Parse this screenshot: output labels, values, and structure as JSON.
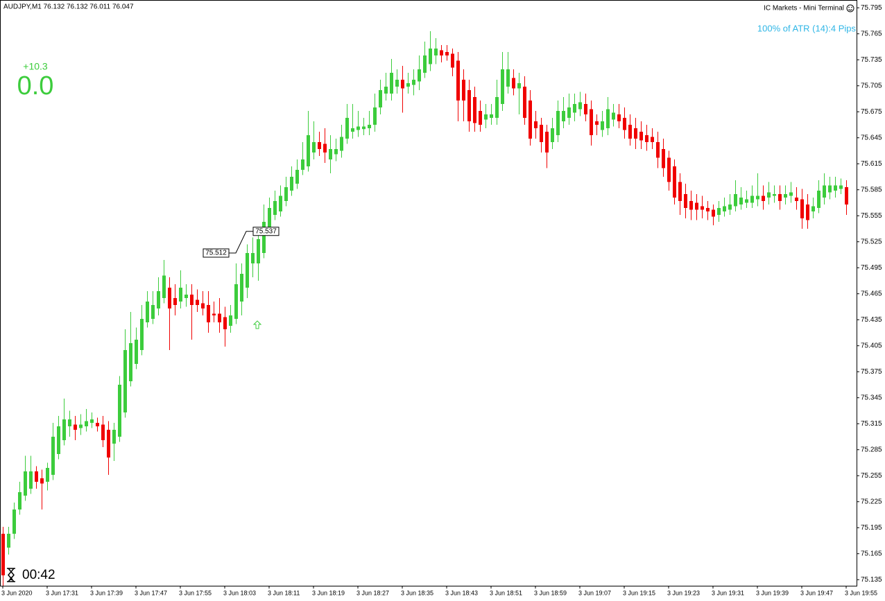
{
  "chart_data": {
    "type": "candlestick",
    "title": "AUDJPY,M1  76.132 76.132 76.011 76.047",
    "annotations": {
      "terminal": "IC Markets - Mini Terminal",
      "atr": "100% of ATR (14):4 Pips",
      "pips_change": "+10.3",
      "pips_big": "0.0",
      "timer": "00:42"
    },
    "trendline": {
      "start": 75.512,
      "end": 75.537
    },
    "up_color": "#3ccc3c",
    "down_color": "#f00000",
    "ylim": [
      75.128,
      75.804
    ],
    "yticks": [
      75.795,
      75.765,
      75.735,
      75.705,
      75.675,
      75.645,
      75.615,
      75.585,
      75.555,
      75.525,
      75.495,
      75.465,
      75.435,
      75.405,
      75.375,
      75.345,
      75.315,
      75.285,
      75.255,
      75.225,
      75.195,
      75.165,
      75.135
    ],
    "categories": [
      "3 Jun 2020",
      null,
      null,
      null,
      null,
      null,
      null,
      null,
      "3 Jun 17:31",
      null,
      null,
      null,
      null,
      null,
      null,
      null,
      "3 Jun 17:39",
      null,
      null,
      null,
      null,
      null,
      null,
      null,
      "3 Jun 17:47",
      null,
      null,
      null,
      null,
      null,
      null,
      null,
      "3 Jun 17:55",
      null,
      null,
      null,
      null,
      null,
      null,
      null,
      "3 Jun 18:03",
      null,
      null,
      null,
      null,
      null,
      null,
      null,
      "3 Jun 18:11",
      null,
      null,
      null,
      null,
      null,
      null,
      null,
      "3 Jun 18:19",
      null,
      null,
      null,
      null,
      null,
      null,
      null,
      "3 Jun 18:27",
      null,
      null,
      null,
      null,
      null,
      null,
      null,
      "3 Jun 18:35",
      null,
      null,
      null,
      null,
      null,
      null,
      null,
      "3 Jun 18:43",
      null,
      null,
      null,
      null,
      null,
      null,
      null,
      "3 Jun 18:51",
      null,
      null,
      null,
      null,
      null,
      null,
      null,
      "3 Jun 18:59",
      null,
      null,
      null,
      null,
      null,
      null,
      null,
      "3 Jun 19:07",
      null,
      null,
      null,
      null,
      null,
      null,
      null,
      "3 Jun 19:15",
      null,
      null,
      null,
      null,
      null,
      null,
      null,
      "3 Jun 19:23",
      null,
      null,
      null,
      null,
      null,
      null,
      null,
      "3 Jun 19:31",
      null,
      null,
      null,
      null,
      null,
      null,
      null,
      "3 Jun 19:39",
      null,
      null,
      null,
      null,
      null,
      null,
      null,
      "3 Jun 19:47",
      null,
      null,
      null,
      null,
      null,
      null,
      null,
      "3 Jun 19:55"
    ],
    "open": [
      75.188,
      75.172,
      75.188,
      75.216,
      75.232,
      75.24,
      75.26,
      75.252,
      75.248,
      75.256,
      75.28,
      75.296,
      75.312,
      75.314,
      75.31,
      75.312,
      75.316,
      75.316,
      75.314,
      75.308,
      75.292,
      75.3,
      75.328,
      75.364,
      75.384,
      75.4,
      75.432,
      75.436,
      75.448,
      75.46,
      75.472,
      75.46,
      75.456,
      75.46,
      75.464,
      75.458,
      75.454,
      75.452,
      75.442,
      75.442,
      75.438,
      75.428,
      75.436,
      75.456,
      75.472,
      75.5,
      75.5,
      75.512,
      75.54,
      75.556,
      75.56,
      75.572,
      75.584,
      75.592,
      75.608,
      75.612,
      75.628,
      75.64,
      75.638,
      75.62,
      75.626,
      75.63,
      75.644,
      75.652,
      75.654,
      75.655,
      75.656,
      75.66,
      75.68,
      75.696,
      75.696,
      75.704,
      75.712,
      75.704,
      75.706,
      75.71,
      75.72,
      75.73,
      75.74,
      75.746,
      75.744,
      75.742,
      75.734,
      75.712,
      75.7,
      75.692,
      75.676,
      75.666,
      75.668,
      75.668,
      75.684,
      75.704,
      75.714,
      75.702,
      75.704,
      75.688,
      75.664,
      75.66,
      75.652,
      75.64,
      75.648,
      75.664,
      75.668,
      75.674,
      75.678,
      75.684,
      75.678,
      75.664,
      75.654,
      75.656,
      75.666,
      75.672,
      75.668,
      75.66,
      75.656,
      75.652,
      75.648,
      75.646,
      75.64,
      75.632,
      75.622,
      75.612,
      75.594,
      75.58,
      75.572,
      75.57,
      75.566,
      75.564,
      75.562,
      75.556,
      75.56,
      75.562,
      75.566,
      75.568,
      75.57,
      75.57,
      75.574,
      75.578,
      75.576,
      75.578,
      75.58,
      75.576,
      75.578,
      75.576,
      75.574,
      75.568,
      75.56,
      75.564,
      75.576,
      75.582,
      75.584,
      75.586,
      75.588
    ],
    "high": [
      75.196,
      75.196,
      75.224,
      75.248,
      75.278,
      75.278,
      75.266,
      75.262,
      75.27,
      75.316,
      75.324,
      75.344,
      75.33,
      75.324,
      75.326,
      75.332,
      75.328,
      75.322,
      75.324,
      75.318,
      75.316,
      75.37,
      75.424,
      75.444,
      75.426,
      75.452,
      75.468,
      75.468,
      75.484,
      75.504,
      75.484,
      75.476,
      75.492,
      75.476,
      75.476,
      75.47,
      75.468,
      75.468,
      75.456,
      75.46,
      75.45,
      75.452,
      75.5,
      75.5,
      75.522,
      75.53,
      75.54,
      75.568,
      75.576,
      75.584,
      75.59,
      75.6,
      75.612,
      75.62,
      75.64,
      75.676,
      75.664,
      75.652,
      75.656,
      75.648,
      75.644,
      75.66,
      75.684,
      75.684,
      75.676,
      75.668,
      75.676,
      75.696,
      75.712,
      75.72,
      75.736,
      75.724,
      75.728,
      75.72,
      75.724,
      75.74,
      75.756,
      75.768,
      75.76,
      75.752,
      75.752,
      75.748,
      75.744,
      75.724,
      75.712,
      75.704,
      75.688,
      75.684,
      75.684,
      75.712,
      75.744,
      75.744,
      75.724,
      75.72,
      75.716,
      75.7,
      75.676,
      75.668,
      75.66,
      75.668,
      75.688,
      75.692,
      75.696,
      75.696,
      75.698,
      75.696,
      75.688,
      75.672,
      75.676,
      75.692,
      75.684,
      75.684,
      75.68,
      75.672,
      75.668,
      75.664,
      75.66,
      75.656,
      75.652,
      75.644,
      75.63,
      75.62,
      75.604,
      75.592,
      75.584,
      75.58,
      75.578,
      75.572,
      75.568,
      75.572,
      75.576,
      75.58,
      75.596,
      75.588,
      75.584,
      75.59,
      75.604,
      75.59,
      75.594,
      75.59,
      75.59,
      75.59,
      75.594,
      75.588,
      75.586,
      75.58,
      75.576,
      75.596,
      75.604,
      75.6,
      75.6,
      75.598,
      75.596
    ],
    "low": [
      75.128,
      75.164,
      75.182,
      75.21,
      75.226,
      75.234,
      75.24,
      75.216,
      75.238,
      75.25,
      75.274,
      75.29,
      75.3,
      75.296,
      75.302,
      75.306,
      75.31,
      75.306,
      75.288,
      75.256,
      75.272,
      75.294,
      75.322,
      75.358,
      75.378,
      75.394,
      75.426,
      75.43,
      75.44,
      75.454,
      75.4,
      75.44,
      75.448,
      75.45,
      75.412,
      75.444,
      75.44,
      75.42,
      75.432,
      75.42,
      75.404,
      75.42,
      75.43,
      75.44,
      75.46,
      75.484,
      75.48,
      75.506,
      75.534,
      75.55,
      75.554,
      75.566,
      75.578,
      75.586,
      75.602,
      75.606,
      75.62,
      75.624,
      75.616,
      75.604,
      75.618,
      75.622,
      75.638,
      75.644,
      75.646,
      75.648,
      75.648,
      75.652,
      75.672,
      75.688,
      75.688,
      75.696,
      75.674,
      75.696,
      75.694,
      75.7,
      75.714,
      75.722,
      75.73,
      75.732,
      75.734,
      75.716,
      75.664,
      75.664,
      75.652,
      75.652,
      75.652,
      75.656,
      75.66,
      75.66,
      75.676,
      75.696,
      75.694,
      75.672,
      75.66,
      75.636,
      75.644,
      75.628,
      75.61,
      75.632,
      75.64,
      75.656,
      75.66,
      75.664,
      75.67,
      75.664,
      75.636,
      75.648,
      75.646,
      75.648,
      75.658,
      75.656,
      75.644,
      75.636,
      75.632,
      75.632,
      75.63,
      75.632,
      75.61,
      75.6,
      75.584,
      75.568,
      75.556,
      75.552,
      75.55,
      75.55,
      75.552,
      75.55,
      75.544,
      75.548,
      75.554,
      75.556,
      75.56,
      75.562,
      75.564,
      75.564,
      75.566,
      75.562,
      75.568,
      75.57,
      75.562,
      75.568,
      75.57,
      75.562,
      75.54,
      75.54,
      75.552,
      75.558,
      75.568,
      75.574,
      75.576,
      75.58,
      75.556
    ],
    "close": [
      75.14,
      75.188,
      75.216,
      75.236,
      75.26,
      75.26,
      75.248,
      75.246,
      75.264,
      75.3,
      75.312,
      75.32,
      75.32,
      75.308,
      75.314,
      75.318,
      75.32,
      75.312,
      75.296,
      75.276,
      75.308,
      75.36,
      75.4,
      75.408,
      75.412,
      75.436,
      75.456,
      75.452,
      75.468,
      75.486,
      75.448,
      75.452,
      75.472,
      75.464,
      75.452,
      75.452,
      75.448,
      75.432,
      75.44,
      75.432,
      75.424,
      75.44,
      75.476,
      75.488,
      75.512,
      75.512,
      75.528,
      75.548,
      75.564,
      75.572,
      75.578,
      75.588,
      75.6,
      75.608,
      75.62,
      75.648,
      75.64,
      75.632,
      75.628,
      75.632,
      75.632,
      75.646,
      75.668,
      75.656,
      75.658,
      75.658,
      75.66,
      75.68,
      75.7,
      75.704,
      75.72,
      75.712,
      75.702,
      75.708,
      75.712,
      75.724,
      75.74,
      75.748,
      75.748,
      75.74,
      75.74,
      75.726,
      75.688,
      75.688,
      75.664,
      75.662,
      75.66,
      75.672,
      75.672,
      75.692,
      75.724,
      75.724,
      75.702,
      75.708,
      75.668,
      75.644,
      75.656,
      75.64,
      75.628,
      75.656,
      75.676,
      75.676,
      75.68,
      75.684,
      75.686,
      75.672,
      75.648,
      75.66,
      75.664,
      75.678,
      75.674,
      75.664,
      75.654,
      75.644,
      75.644,
      75.642,
      75.64,
      75.64,
      75.622,
      75.61,
      75.594,
      75.576,
      75.572,
      75.564,
      75.562,
      75.562,
      75.562,
      75.56,
      75.554,
      75.564,
      75.566,
      75.568,
      75.58,
      75.576,
      75.574,
      75.578,
      75.578,
      75.572,
      75.582,
      75.58,
      75.572,
      75.58,
      75.582,
      75.572,
      75.552,
      75.55,
      75.566,
      75.584,
      75.59,
      75.59,
      75.59,
      75.59,
      75.568
    ]
  }
}
